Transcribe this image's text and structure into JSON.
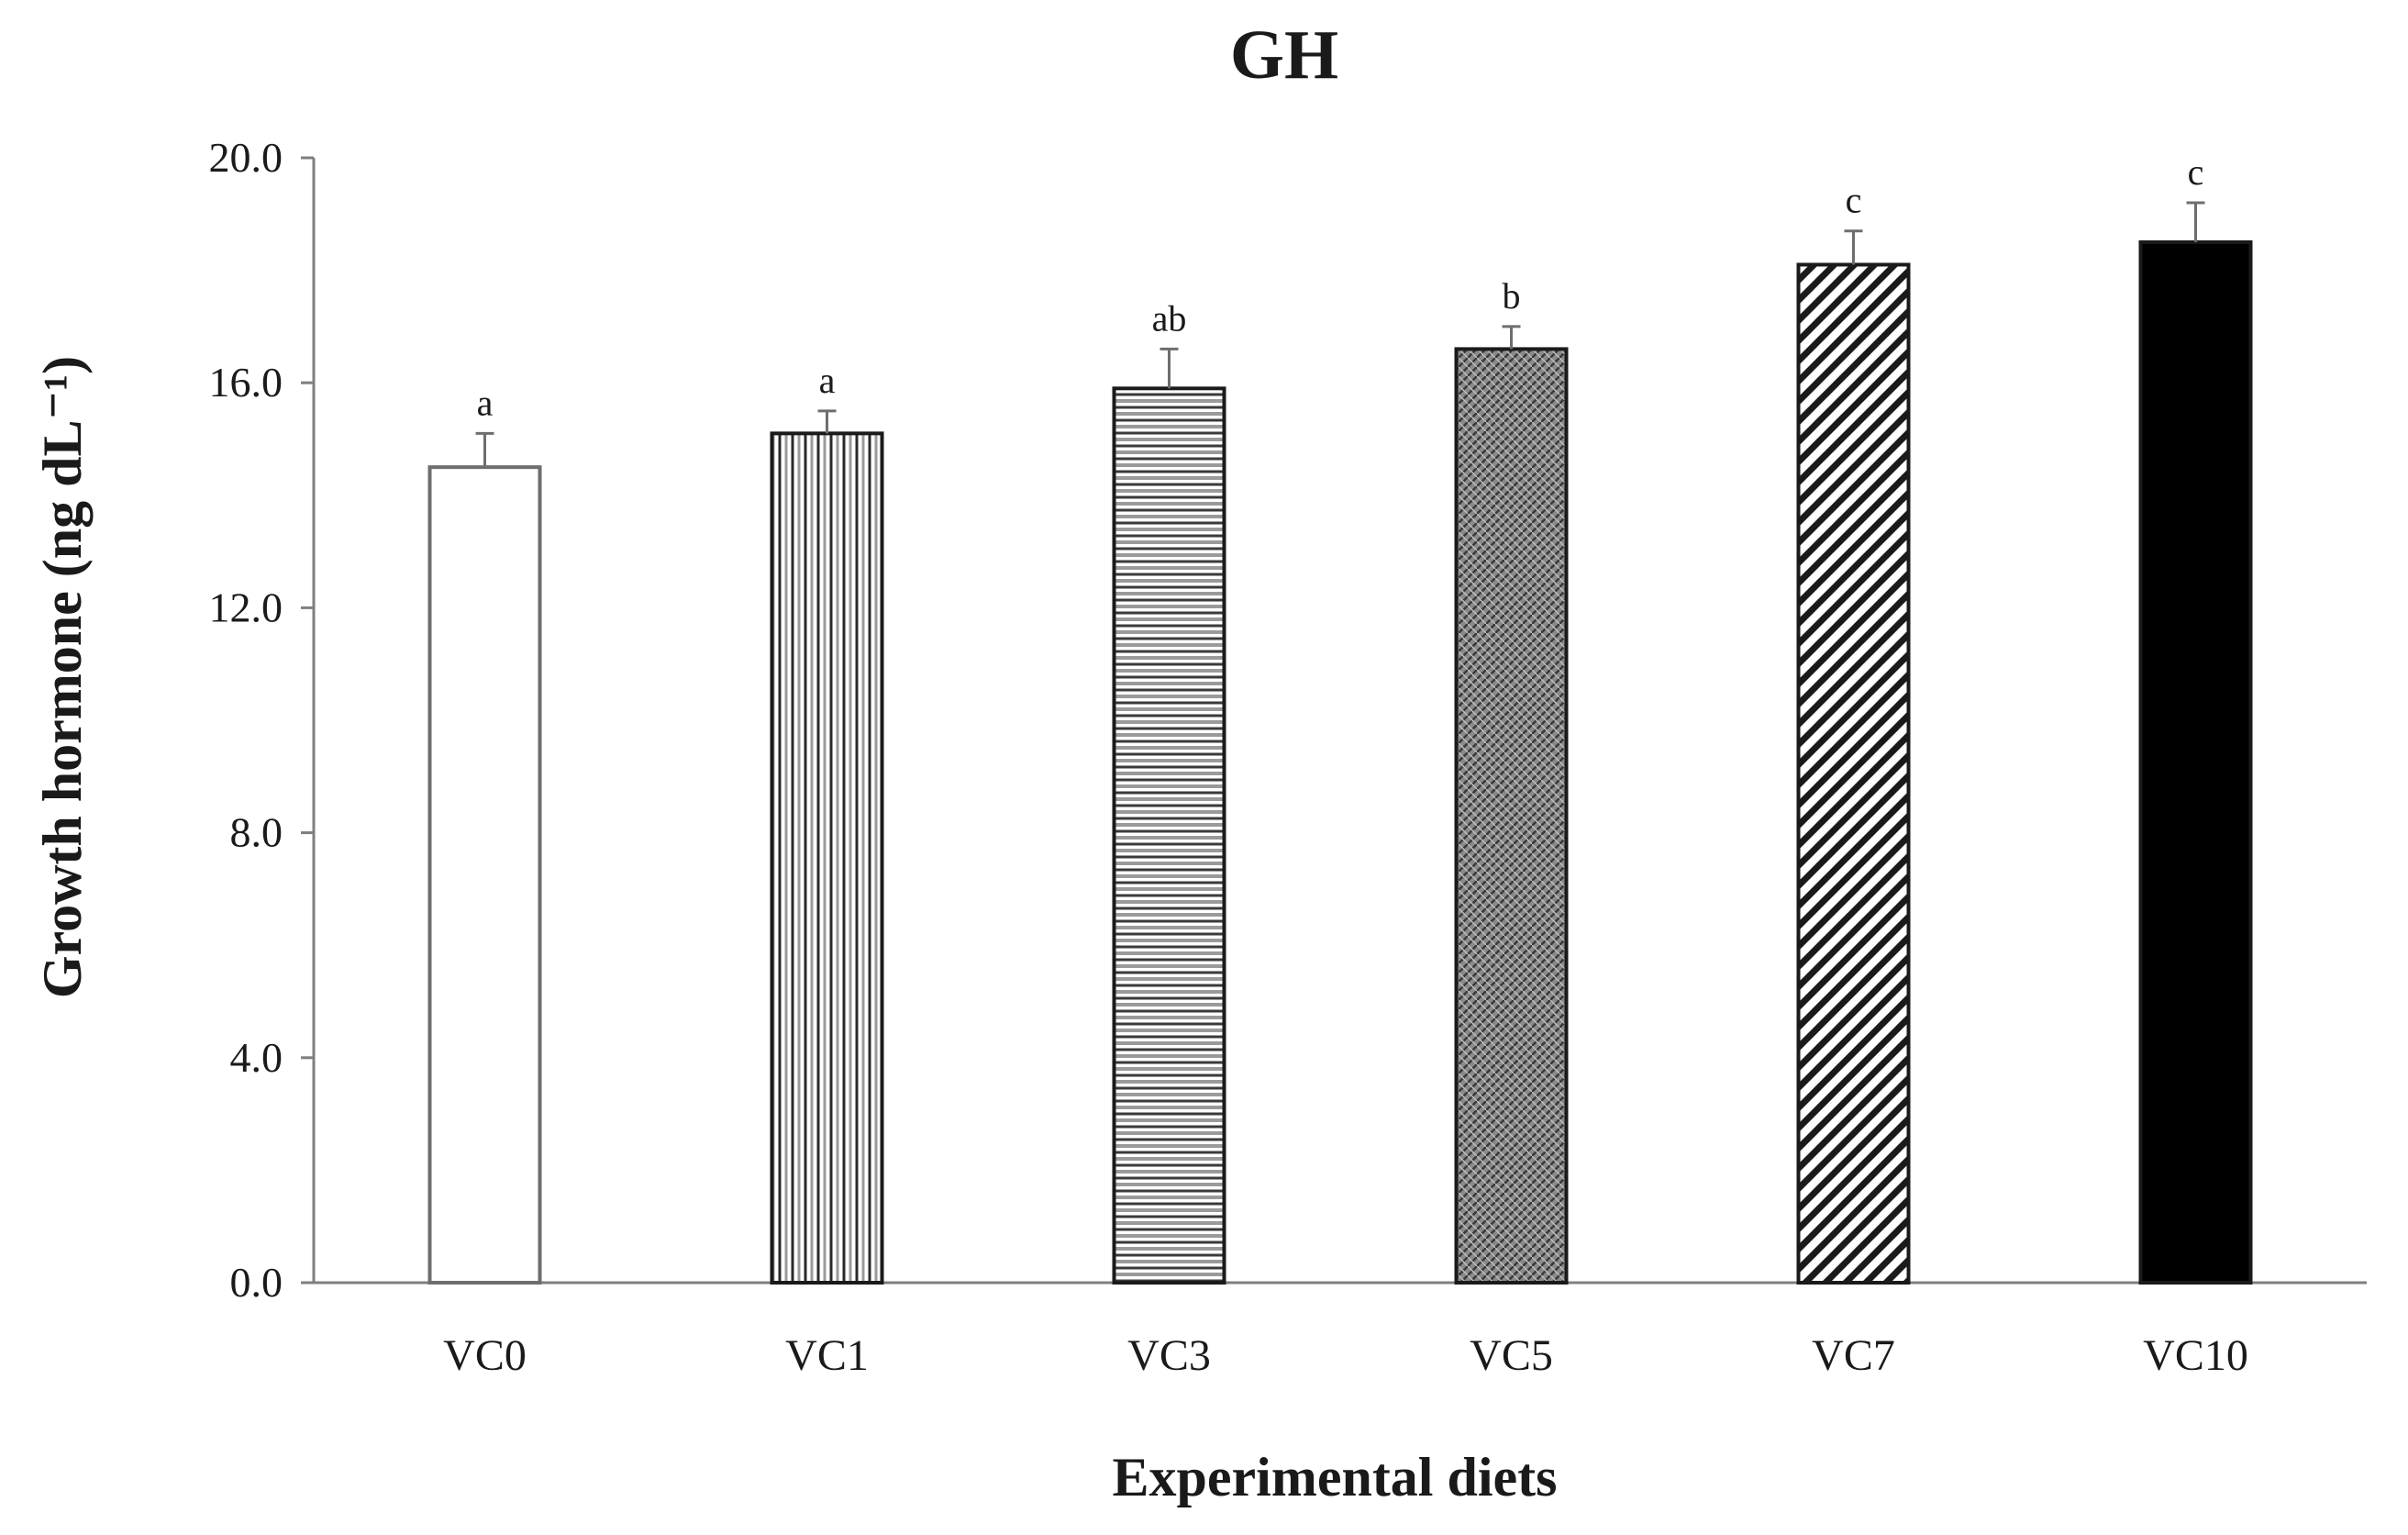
{
  "chart_data": {
    "type": "bar",
    "title": "GH",
    "xlabel": "Experimental diets",
    "ylabel": "Growth hormone (ng dL⁻¹)",
    "ylim": [
      0,
      20
    ],
    "yticks": [
      "0.0",
      "4.0",
      "8.0",
      "12.0",
      "16.0",
      "20.0"
    ],
    "categories": [
      "VC0",
      "VC1",
      "VC3",
      "VC5",
      "VC7",
      "VC10"
    ],
    "values": [
      14.5,
      15.1,
      15.9,
      16.6,
      18.1,
      18.5
    ],
    "errors": [
      0.6,
      0.4,
      0.7,
      0.4,
      0.6,
      0.7
    ],
    "significance": [
      "a",
      "a",
      "ab",
      "b",
      "c",
      "c"
    ],
    "fill_patterns": [
      "none",
      "vertical-lines",
      "horizontal-lines",
      "crosshatch",
      "diagonal-lines",
      "solid"
    ],
    "grid": false
  },
  "colors": {
    "ink": "#1a1a1a",
    "axis": "#7f7f7f",
    "pattern_gray": "#8c8c8c"
  }
}
